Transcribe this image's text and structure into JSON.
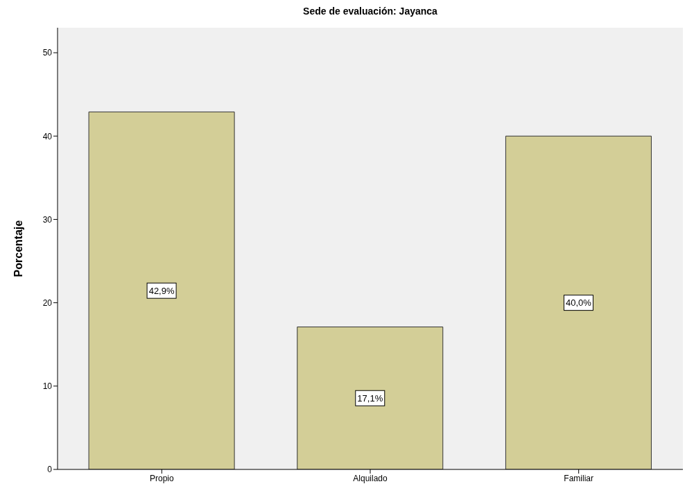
{
  "chart_data": {
    "type": "bar",
    "title": "Sede de evaluación: Jayanca",
    "ylabel": "Porcentaje",
    "categories": [
      "Propio",
      "Alquilado",
      "Familiar"
    ],
    "values": [
      42.9,
      17.1,
      40.0
    ],
    "value_labels": [
      "42,9%",
      "17,1%",
      "40,0%"
    ],
    "color": "#d3ce97",
    "ylim": [
      0,
      53
    ],
    "yticks": [
      0,
      10,
      20,
      30,
      40,
      50
    ],
    "grid": false
  }
}
